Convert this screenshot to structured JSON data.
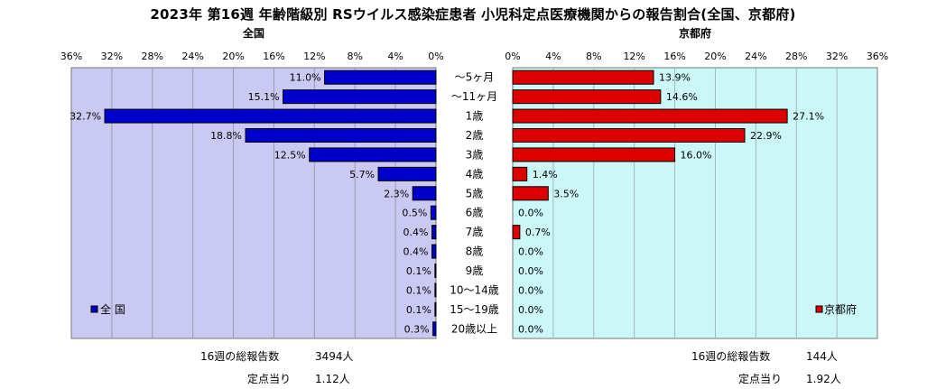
{
  "title": "2023年 第16週 年齢階級別 RSウイルス感染症患者 小児科定点医療機関からの報告割合(全国、京都府)",
  "colors": {
    "national": "#0000cc",
    "kyoto": "#dd0000",
    "plot_bg": "#c9c9f2",
    "plot_bg_right": "#ccf7f7"
  },
  "chart_data": [
    {
      "type": "bar",
      "orientation": "horizontal",
      "direction": "right-to-left",
      "title": "全国",
      "legend": "全 国",
      "legend_position": "bottom-left",
      "xlim": [
        0,
        36
      ],
      "ticks": [
        "36%",
        "32%",
        "28%",
        "24%",
        "20%",
        "16%",
        "12%",
        "8%",
        "4%",
        "0%"
      ],
      "tick_values": [
        36,
        32,
        28,
        24,
        20,
        16,
        12,
        8,
        4,
        0
      ],
      "grid": true,
      "categories": [
        "〜5ヶ月",
        "〜11ヶ月",
        "1歳",
        "2歳",
        "3歳",
        "4歳",
        "5歳",
        "6歳",
        "7歳",
        "8歳",
        "9歳",
        "10〜14歳",
        "15〜19歳",
        "20歳以上"
      ],
      "values": [
        11.0,
        15.1,
        32.7,
        18.8,
        12.5,
        5.7,
        2.3,
        0.5,
        0.4,
        0.4,
        0.1,
        0.1,
        0.1,
        0.3
      ],
      "labels": [
        "11.0%",
        "15.1%",
        "32.7%",
        "18.8%",
        "12.5%",
        "5.7%",
        "2.3%",
        "0.5%",
        "0.4%",
        "0.4%",
        "0.1%",
        "0.1%",
        "0.1%",
        "0.3%"
      ]
    },
    {
      "type": "bar",
      "orientation": "horizontal",
      "direction": "left-to-right",
      "title": "京都府",
      "legend": "京都府",
      "legend_position": "bottom-right",
      "xlim": [
        0,
        36
      ],
      "ticks": [
        "0%",
        "4%",
        "8%",
        "12%",
        "16%",
        "20%",
        "24%",
        "28%",
        "32%",
        "36%"
      ],
      "tick_values": [
        0,
        4,
        8,
        12,
        16,
        20,
        24,
        28,
        32,
        36
      ],
      "grid": true,
      "categories": [
        "〜5ヶ月",
        "〜11ヶ月",
        "1歳",
        "2歳",
        "3歳",
        "4歳",
        "5歳",
        "6歳",
        "7歳",
        "8歳",
        "9歳",
        "10〜14歳",
        "15〜19歳",
        "20歳以上"
      ],
      "values": [
        13.9,
        14.6,
        27.1,
        22.9,
        16.0,
        1.4,
        3.5,
        0.0,
        0.7,
        0.0,
        0.0,
        0.0,
        0.0,
        0.0
      ],
      "labels": [
        "13.9%",
        "14.6%",
        "27.1%",
        "22.9%",
        "16.0%",
        "1.4%",
        "3.5%",
        "0.0%",
        "0.7%",
        "0.0%",
        "0.0%",
        "0.0%",
        "0.0%",
        "0.0%"
      ]
    }
  ],
  "stats": {
    "national": {
      "reports_label": "16週の総報告数",
      "reports_value": "3494人",
      "per_site_label": "定点当り",
      "per_site_value": "1.12人"
    },
    "kyoto": {
      "reports_label": "16週の総報告数",
      "reports_value": "144人",
      "per_site_label": "定点当り",
      "per_site_value": "1.92人"
    }
  }
}
